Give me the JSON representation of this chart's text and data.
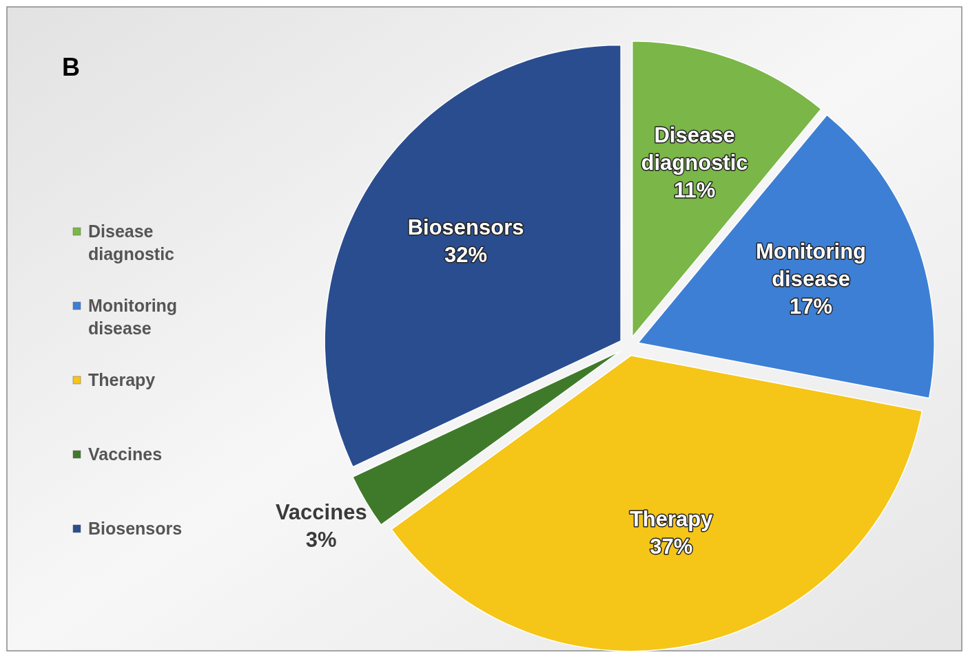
{
  "chart_data": {
    "type": "pie",
    "title": "B",
    "categories": [
      "Disease diagnostic",
      "Monitoring disease",
      "Therapy",
      "Vaccines",
      "Biosensors"
    ],
    "values": [
      11,
      17,
      37,
      3,
      32
    ],
    "colors": [
      "#7ab648",
      "#3d7fd4",
      "#f5c518",
      "#3f7a2a",
      "#2a4d8f"
    ],
    "value_labels": [
      "11%",
      "17%",
      "37%",
      "3%",
      "32%"
    ],
    "legend": "left"
  }
}
